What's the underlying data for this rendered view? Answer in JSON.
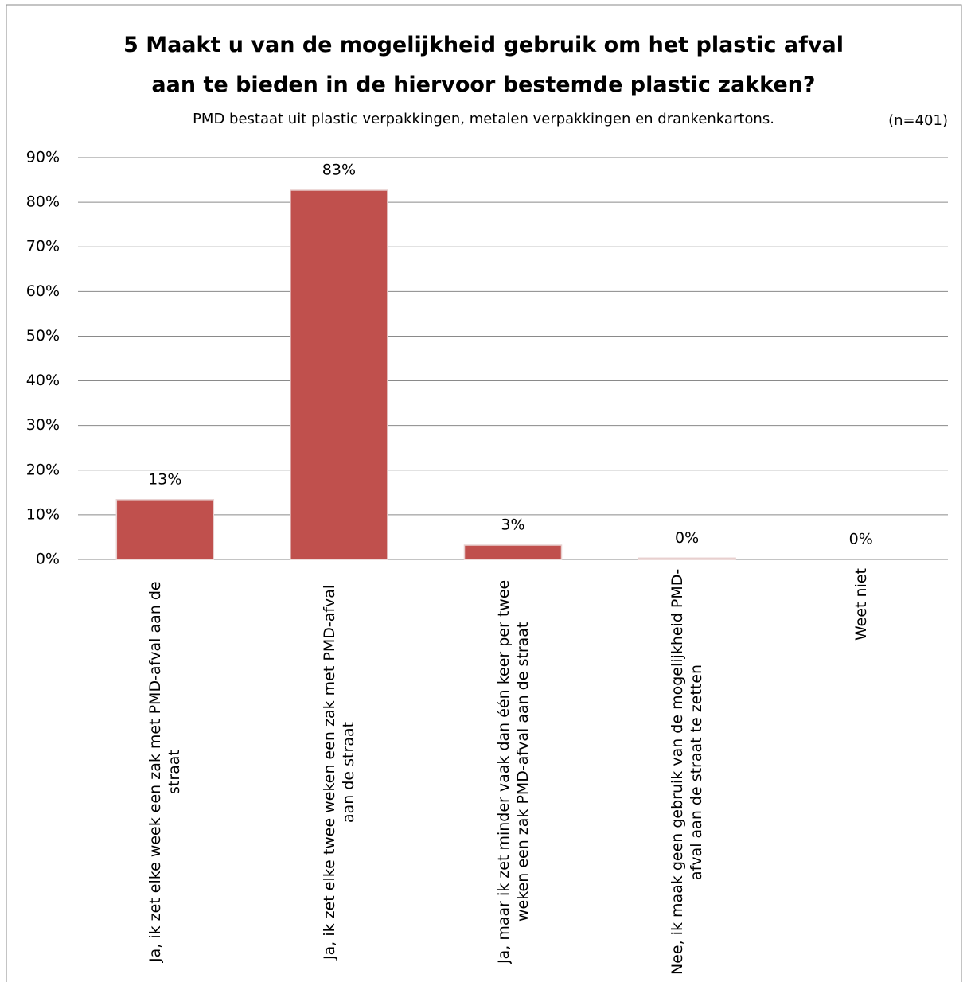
{
  "chart_data": {
    "type": "bar",
    "title": "5 Maakt u van de mogelijkheid gebruik om het plastic afval aan te bieden in de hiervoor bestemde plastic zakken?",
    "subtitle": "PMD bestaat uit plastic verpakkingen, metalen verpakkingen en drankenkartons.",
    "annotation": "(n=401)",
    "categories": [
      "Ja, ik zet elke week een zak met PMD-afval aan de straat",
      "Ja, ik zet elke twee weken een zak met PMD-afval aan de straat",
      "Ja, maar ik zet minder vaak dan één keer per twee weken een zak PMD-afval aan de straat",
      "Nee, ik maak geen gebruik van de mogelijkheid PMD-afval aan de straat te zetten",
      "Weet niet"
    ],
    "values": [
      13.4,
      82.7,
      3.2,
      0.3,
      0
    ],
    "value_labels": [
      "13%",
      "83%",
      "3%",
      "0%",
      "0%"
    ],
    "color": "#c0504d",
    "ylim": [
      0,
      90
    ],
    "yticks": [
      {
        "value": 0,
        "label": "0%"
      },
      {
        "value": 10,
        "label": "10%"
      },
      {
        "value": 20,
        "label": "20%"
      },
      {
        "value": 30,
        "label": "30%"
      },
      {
        "value": 40,
        "label": "40%"
      },
      {
        "value": 50,
        "label": "50%"
      },
      {
        "value": 60,
        "label": "60%"
      },
      {
        "value": 70,
        "label": "70%"
      },
      {
        "value": 80,
        "label": "80%"
      },
      {
        "value": 90,
        "label": "90%"
      }
    ],
    "grid": true
  }
}
